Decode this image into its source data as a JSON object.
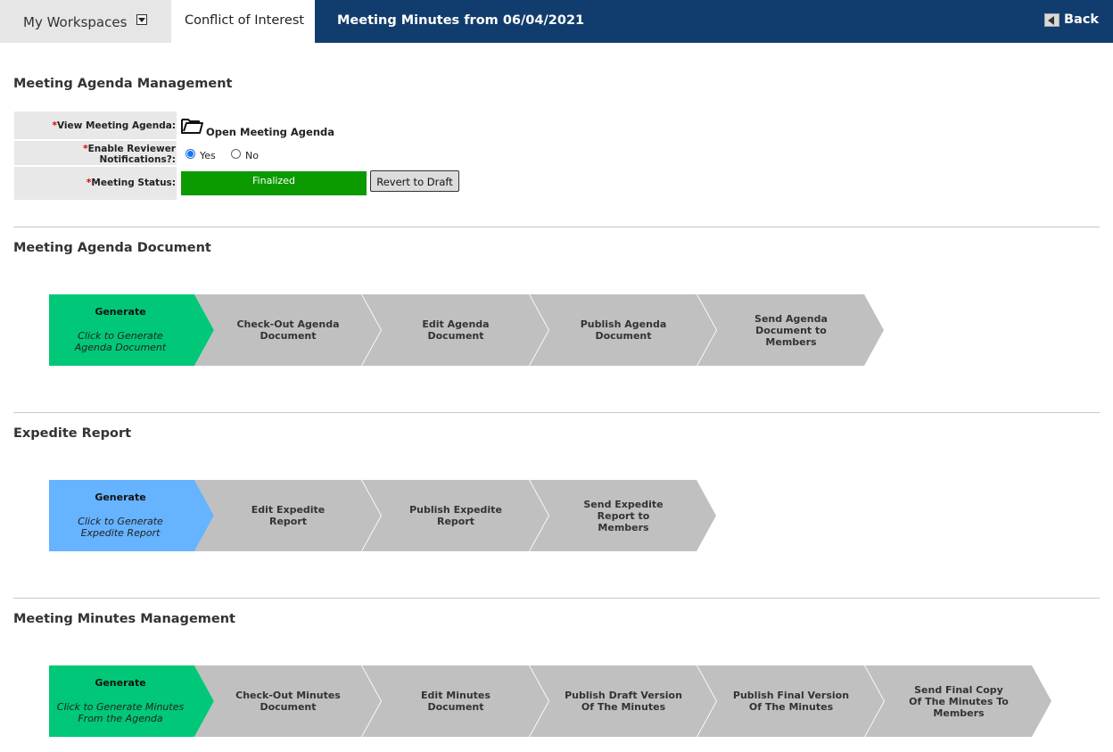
{
  "topbar": {
    "workspaces_label": "My Workspaces",
    "active_tab_label": "Conflict of Interest",
    "page_title": "Meeting Minutes from 06/04/2021",
    "back_label": "Back"
  },
  "colors": {
    "topbar": "#113d6e",
    "generate_green": "#00c878",
    "generate_blue": "#66b3ff",
    "step_gray": "#c0c0c0",
    "status_green": "#0b9b00"
  },
  "agenda_management": {
    "title": "Meeting Agenda Management",
    "view_agenda_label": "View Meeting Agenda:",
    "open_agenda_text": "Open Meeting Agenda",
    "notifications_label_1": "Enable Reviewer",
    "notifications_label_2": "Notifications?:",
    "yes_label": "Yes",
    "no_label": "No",
    "notifications_value": "Yes",
    "status_label": "Meeting Status:",
    "status_value": "Finalized",
    "revert_button": "Revert to Draft",
    "required_mark": "*"
  },
  "agenda_document": {
    "title": "Meeting Agenda Document",
    "generate_title": "Generate",
    "generate_sub_1": "Click to Generate",
    "generate_sub_2": "Agenda Document",
    "steps": [
      {
        "l1": "Check-Out Agenda",
        "l2": "Document",
        "l3": ""
      },
      {
        "l1": "Edit Agenda",
        "l2": "Document",
        "l3": ""
      },
      {
        "l1": "Publish Agenda",
        "l2": "Document",
        "l3": ""
      },
      {
        "l1": "Send Agenda",
        "l2": "Document to",
        "l3": "Members"
      }
    ]
  },
  "expedite_report": {
    "title": "Expedite Report",
    "generate_title": "Generate",
    "generate_sub_1": "Click to Generate",
    "generate_sub_2": "Expedite Report",
    "steps": [
      {
        "l1": "Edit Expedite",
        "l2": "Report",
        "l3": ""
      },
      {
        "l1": "Publish Expedite",
        "l2": "Report",
        "l3": ""
      },
      {
        "l1": "Send Expedite",
        "l2": "Report to",
        "l3": "Members"
      }
    ]
  },
  "minutes_management": {
    "title": "Meeting Minutes Management",
    "generate_title": "Generate",
    "generate_sub_1": "Click to Generate Minutes",
    "generate_sub_2": "From the Agenda",
    "steps": [
      {
        "l1": "Check-Out Minutes",
        "l2": "Document",
        "l3": ""
      },
      {
        "l1": "Edit Minutes",
        "l2": "Document",
        "l3": ""
      },
      {
        "l1": "Publish Draft Version",
        "l2": "Of The Minutes",
        "l3": ""
      },
      {
        "l1": "Publish Final Version",
        "l2": "Of The Minutes",
        "l3": ""
      },
      {
        "l1": "Send Final Copy",
        "l2": "Of The Minutes To",
        "l3": "Members"
      }
    ]
  }
}
